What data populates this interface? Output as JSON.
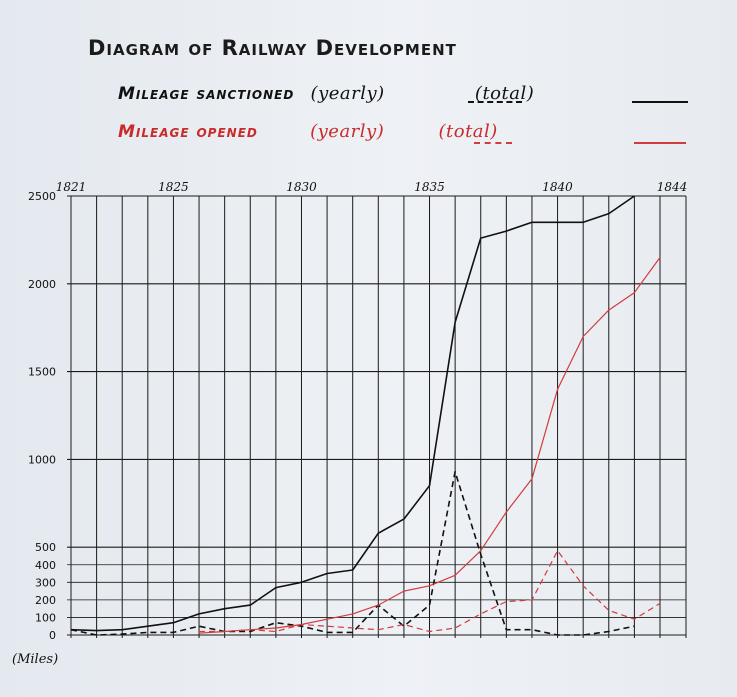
{
  "chart_data": {
    "type": "line",
    "title": "Diagram of Railway Development",
    "ylabel": "(Miles)",
    "x_tick_labels": [
      "1821",
      "1825",
      "1830",
      "1835",
      "1840",
      "1844"
    ],
    "x_tick_years": [
      1821,
      1825,
      1830,
      1835,
      1840,
      1844
    ],
    "x": [
      1821,
      1822,
      1823,
      1824,
      1825,
      1826,
      1827,
      1828,
      1829,
      1830,
      1831,
      1832,
      1833,
      1834,
      1835,
      1836,
      1837,
      1838,
      1839,
      1840,
      1841,
      1842,
      1843,
      1844
    ],
    "xlim": [
      1821,
      1844
    ],
    "ylim": [
      0,
      2500
    ],
    "y_tick_labels": [
      "0",
      "100",
      "200",
      "300",
      "400",
      "500",
      "1000",
      "1500",
      "2000",
      "2500"
    ],
    "y_ticks": [
      0,
      100,
      200,
      300,
      400,
      500,
      1000,
      1500,
      2000,
      2500
    ],
    "legend": {
      "sanctioned_label": "Mileage sanctioned",
      "opened_label": "Mileage opened",
      "yearly_text": "(yearly)",
      "total_text": "(total)"
    },
    "series": [
      {
        "key": "sanctioned_total",
        "color": "#111111",
        "dashed": false,
        "values": [
          30,
          25,
          30,
          50,
          70,
          120,
          150,
          170,
          270,
          300,
          350,
          370,
          580,
          660,
          850,
          1780,
          2260,
          2300,
          2350,
          2350,
          2350,
          2400,
          2500,
          null
        ]
      },
      {
        "key": "sanctioned_yearly",
        "color": "#111111",
        "dashed": true,
        "values": [
          30,
          0,
          5,
          15,
          15,
          50,
          20,
          20,
          70,
          50,
          15,
          15,
          170,
          50,
          170,
          930,
          460,
          30,
          30,
          0,
          0,
          20,
          50,
          null
        ]
      },
      {
        "key": "opened_total",
        "color": "#d23c3c",
        "dashed": false,
        "values": [
          null,
          null,
          null,
          null,
          null,
          10,
          20,
          30,
          40,
          60,
          90,
          120,
          170,
          250,
          280,
          340,
          480,
          700,
          890,
          1400,
          1700,
          1850,
          1950,
          2150
        ]
      },
      {
        "key": "opened_yearly",
        "color": "#d23c3c",
        "dashed": true,
        "values": [
          null,
          null,
          null,
          null,
          null,
          20,
          20,
          30,
          20,
          60,
          50,
          40,
          30,
          60,
          20,
          40,
          120,
          190,
          200,
          480,
          280,
          140,
          90,
          180
        ]
      }
    ]
  }
}
